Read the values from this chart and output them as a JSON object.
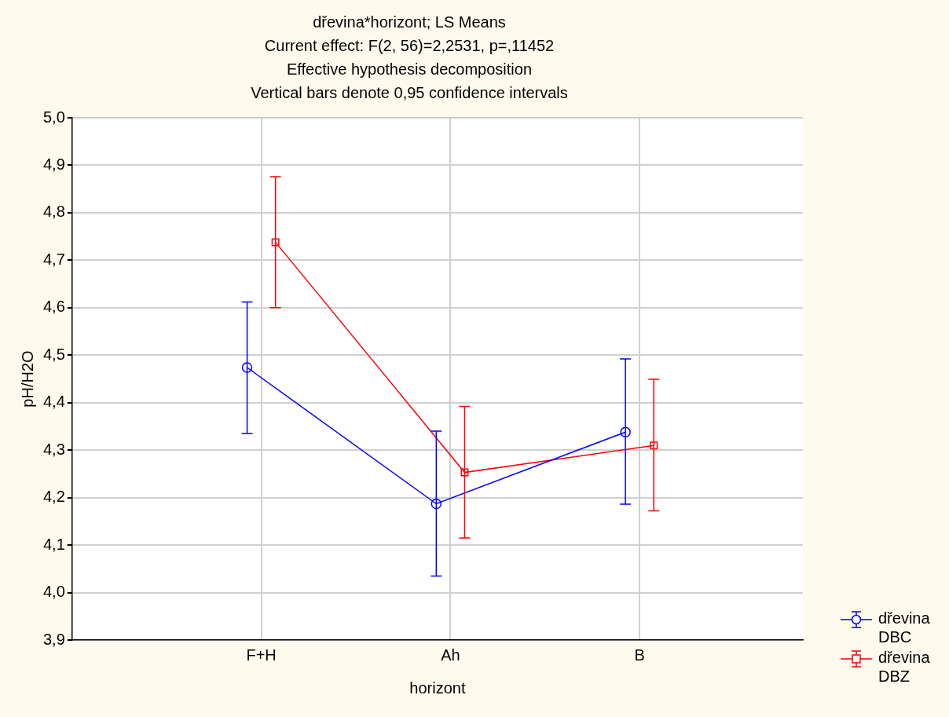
{
  "chart_data": {
    "type": "line",
    "title": "dřevina*horizont; LS Means",
    "subtitle": "Current effect: F(2, 56)=2,2531, p=,11452",
    "annotations": [
      "Effective hypothesis decomposition",
      "Vertical bars denote 0,95 confidence intervals"
    ],
    "xlabel": "horizont",
    "ylabel": "pH/H2O",
    "categories": [
      "F+H",
      "Ah",
      "B"
    ],
    "series": [
      {
        "name": "dřevina DBC",
        "color": "#0000ff",
        "marker": "circle",
        "values": [
          4.474,
          4.187,
          4.338
        ],
        "errors": [
          [
            4.335,
            4.612
          ],
          [
            4.035,
            4.34
          ],
          [
            4.186,
            4.492
          ]
        ]
      },
      {
        "name": "dřevina DBZ",
        "color": "#ff0000",
        "marker": "square",
        "values": [
          4.738,
          4.253,
          4.31
        ],
        "errors": [
          [
            4.6,
            4.876
          ],
          [
            4.115,
            4.392
          ],
          [
            4.172,
            4.449
          ]
        ]
      }
    ],
    "ylim": [
      3.9,
      5.0
    ],
    "yticks": [
      {
        "value": 3.9,
        "label": "3,9"
      },
      {
        "value": 4.0,
        "label": "4,0"
      },
      {
        "value": 4.1,
        "label": "4,1"
      },
      {
        "value": 4.2,
        "label": "4,2"
      },
      {
        "value": 4.3,
        "label": "4,3"
      },
      {
        "value": 4.4,
        "label": "4,4"
      },
      {
        "value": 4.5,
        "label": "4,5"
      },
      {
        "value": 4.6,
        "label": "4,6"
      },
      {
        "value": 4.7,
        "label": "4,7"
      },
      {
        "value": 4.8,
        "label": "4,8"
      },
      {
        "value": 4.9,
        "label": "4,9"
      },
      {
        "value": 5.0,
        "label": "5,0"
      }
    ],
    "grid": true,
    "legend": "bottom right",
    "line_style": "solid"
  }
}
